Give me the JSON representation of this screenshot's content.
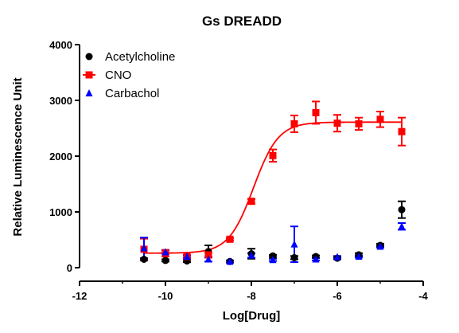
{
  "chart_data": {
    "type": "scatter",
    "title": "Gs DREADD",
    "xlabel": "Log[Drug]",
    "ylabel": "Relative Luminescence Unit",
    "xlim": [
      -12,
      -4
    ],
    "ylim": [
      0,
      4000
    ],
    "xticks": [
      -12,
      -10,
      -8,
      -6,
      -4
    ],
    "yticks": [
      0,
      1000,
      2000,
      3000,
      4000
    ],
    "xtick_labels": [
      "-12",
      "-10",
      "-8",
      "-6",
      "-4"
    ],
    "ytick_labels": [
      "0",
      "1000",
      "2000",
      "3000",
      "4000"
    ],
    "legend_position": "top-left",
    "grid": false,
    "series": [
      {
        "name": "Acetylcholine",
        "color": "#000000",
        "marker": "circle",
        "x": [
          -10.5,
          -10,
          -9.5,
          -9,
          -8.5,
          -8,
          -7.5,
          -7,
          -6.5,
          -6,
          -5.5,
          -5,
          -4.5
        ],
        "y": [
          150,
          130,
          120,
          290,
          110,
          250,
          210,
          180,
          200,
          170,
          230,
          400,
          1040
        ],
        "err": [
          20,
          20,
          20,
          110,
          20,
          90,
          20,
          30,
          20,
          20,
          30,
          30,
          150
        ]
      },
      {
        "name": "CNO",
        "color": "#ff0000",
        "marker": "square",
        "fit": "sigmoid",
        "x": [
          -10.5,
          -10,
          -9.5,
          -9,
          -8.5,
          -8,
          -7.5,
          -7,
          -6.5,
          -6,
          -5.5,
          -5,
          -4.5
        ],
        "y": [
          330,
          260,
          200,
          230,
          510,
          1190,
          2010,
          2580,
          2780,
          2590,
          2580,
          2660,
          2440
        ],
        "err": [
          190,
          60,
          30,
          40,
          20,
          40,
          110,
          150,
          200,
          150,
          110,
          140,
          250
        ]
      },
      {
        "name": "Carbachol",
        "color": "#0000ff",
        "marker": "triangle",
        "x": [
          -10.5,
          -10,
          -9.5,
          -9,
          -8.5,
          -8,
          -7.5,
          -7,
          -6.5,
          -6,
          -5.5,
          -5,
          -4.5
        ],
        "y": [
          350,
          280,
          200,
          150,
          110,
          220,
          140,
          420,
          150,
          190,
          200,
          380,
          740
        ],
        "err": [
          190,
          30,
          20,
          40,
          20,
          40,
          20,
          320,
          20,
          20,
          20,
          20,
          60
        ]
      }
    ],
    "fit_params": {
      "bottom": 260,
      "top": 2610,
      "logEC50": -7.95,
      "hill": 1.5
    }
  }
}
